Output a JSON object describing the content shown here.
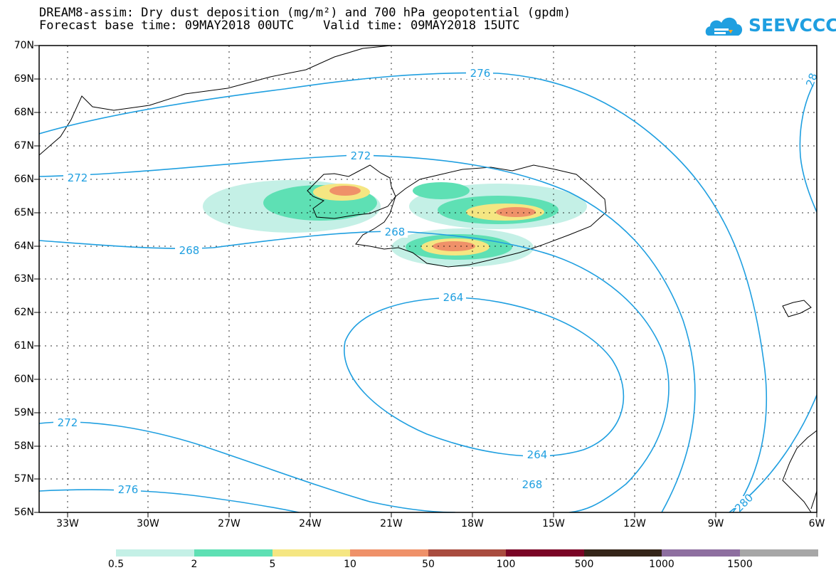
{
  "header": {
    "title_line1": "DREAM8-assim: Dry dust deposition (mg/m²) and 700 hPa geopotential (gpdm)",
    "title_line2": "Forecast base time: 09MAY2018 00UTC    Valid time: 09MAY2018 15UTC"
  },
  "logo": {
    "text": "SEEVCCC",
    "icon": "cloud-logo-icon",
    "color": "#1f9fe0"
  },
  "map": {
    "lat_labels": [
      "70N",
      "69N",
      "68N",
      "67N",
      "66N",
      "65N",
      "64N",
      "63N",
      "62N",
      "61N",
      "60N",
      "59N",
      "58N",
      "57N",
      "56N"
    ],
    "lon_labels": [
      "33W",
      "30W",
      "27W",
      "24W",
      "21W",
      "18W",
      "15W",
      "12W",
      "9W",
      "6W"
    ],
    "contour_color": "#1f9fe0",
    "contour_labels": [
      "276",
      "272",
      "272",
      "268",
      "268",
      "264",
      "264",
      "268",
      "272",
      "276",
      "280",
      "28"
    ]
  },
  "legend": {
    "colors": [
      "#c4f0e6",
      "#5ee0b4",
      "#f5e682",
      "#ef9169",
      "#a94c3f",
      "#7a0526",
      "#352519",
      "#8e6fa0",
      "#a7a7a7"
    ],
    "labels": [
      "0.5",
      "2",
      "5",
      "10",
      "50",
      "100",
      "500",
      "1000",
      "1500"
    ]
  }
}
